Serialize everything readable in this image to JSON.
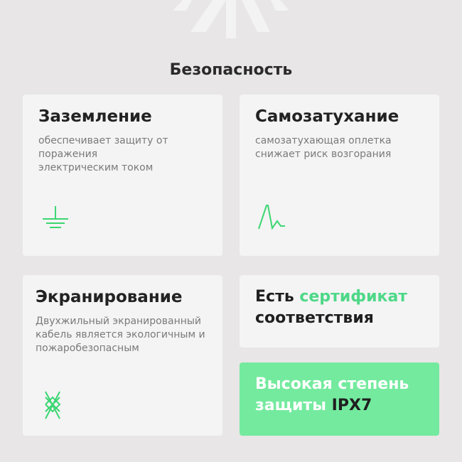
{
  "heading": "Безопасность",
  "accent": "#4ed888",
  "cards": [
    {
      "title": "Заземление",
      "desc": "обеспечивает защиту от поражения электрическим током",
      "icon": "ground-icon"
    },
    {
      "title": "Самозатухание",
      "desc": "самозатухающая оплетка снижает риск возгорания",
      "icon": "flame-decay-icon"
    },
    {
      "title": "Экранирование",
      "desc": "Двухжильный экранированный кабель является экологичным и пожаробезопасным",
      "icon": "shield-braid-icon"
    }
  ],
  "certificate": {
    "prefix": "Есть ",
    "highlight": "сертификат",
    "suffix": "соответствия"
  },
  "protection": {
    "text": "Высокая степень защиты ",
    "rating": "IPX7"
  }
}
